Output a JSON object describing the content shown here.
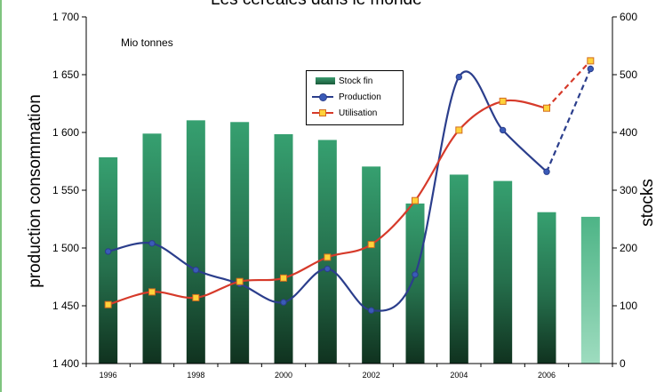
{
  "title": "Les céréales dans le monde",
  "unit_note": "Mio tonnes",
  "colors": {
    "bar": "#2f8a5f",
    "bar_last": "#7fcfa8",
    "production": "#2b3e8c",
    "utilisation": "#d63a2a",
    "marker_fill": "#ffd23a"
  },
  "chart_data": {
    "type": "bar",
    "xlabel": "",
    "ylabel_left": "production consommation",
    "ylabel_right": "stocks",
    "left_axis": {
      "min": 1400,
      "max": 1700,
      "ticks": [
        "1 400",
        "1 450",
        "1 500",
        "1 550",
        "1 600",
        "1 650",
        "1 700"
      ],
      "tick_values": [
        1400,
        1450,
        1500,
        1550,
        1600,
        1650,
        1700
      ]
    },
    "right_axis": {
      "min": 0,
      "max": 600,
      "ticks": [
        "0",
        "100",
        "200",
        "300",
        "400",
        "500",
        "600"
      ],
      "tick_values": [
        0,
        100,
        200,
        300,
        400,
        500,
        600
      ]
    },
    "categories": [
      1996,
      1997,
      1998,
      1999,
      2000,
      2001,
      2002,
      2003,
      2004,
      2005,
      2006,
      2007
    ],
    "x_tick_labels": [
      "1996",
      "",
      "1998",
      "",
      "2000",
      "",
      "2002",
      "",
      "2004",
      "",
      "2006",
      ""
    ],
    "series": [
      {
        "name": "Stock fin",
        "kind": "bar",
        "axis": "right",
        "values": [
          357,
          398,
          421,
          418,
          397,
          387,
          341,
          277,
          327,
          316,
          262,
          254
        ]
      },
      {
        "name": "Production",
        "kind": "line",
        "axis": "left",
        "values": [
          1497,
          1504,
          1481,
          1469,
          1453,
          1482,
          1446,
          1477,
          1648,
          1602,
          1566,
          1655
        ],
        "dashed_from_index": 10
      },
      {
        "name": "Utilisation",
        "kind": "line",
        "axis": "left",
        "values": [
          1451,
          1462,
          1457,
          1471,
          1474,
          1492,
          1503,
          1541,
          1602,
          1627,
          1621,
          1662
        ],
        "dashed_from_index": 10
      }
    ],
    "grid": false,
    "legend_position": "center-top"
  }
}
